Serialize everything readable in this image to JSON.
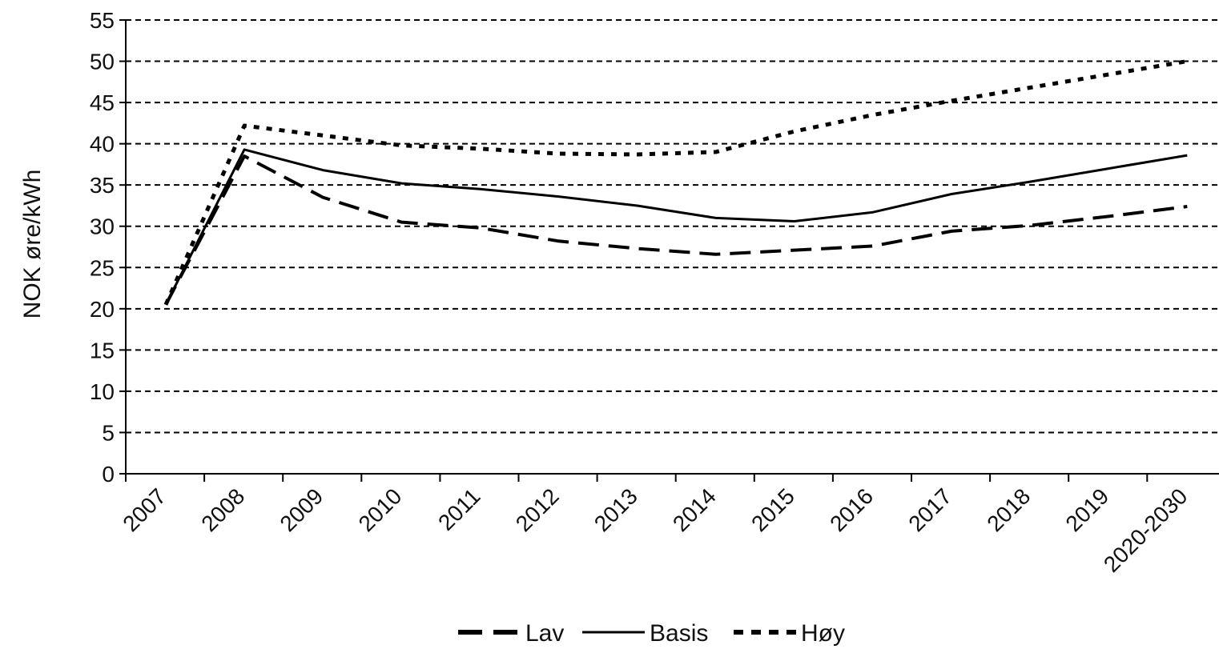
{
  "chart_data": {
    "type": "line",
    "categories": [
      "2007",
      "2008",
      "2009",
      "2010",
      "2011",
      "2012",
      "2013",
      "2014",
      "2015",
      "2016",
      "2017",
      "2018",
      "2019",
      "2020-2030"
    ],
    "ylabel": "NOK øre/kWh",
    "xlabel": "",
    "ylim": [
      0,
      55
    ],
    "yticks": [
      0,
      5,
      10,
      15,
      20,
      25,
      30,
      35,
      40,
      45,
      50,
      55
    ],
    "grid": true,
    "legend_position": "bottom",
    "series": [
      {
        "name": "Lav",
        "style": "long-dash",
        "values": [
          20.5,
          38.5,
          33.5,
          30.5,
          29.8,
          28.2,
          27.3,
          26.6,
          27.1,
          27.6,
          29.4,
          30.1,
          31.2,
          32.4
        ]
      },
      {
        "name": "Basis",
        "style": "solid",
        "values": [
          20.5,
          39.3,
          36.8,
          35.2,
          34.5,
          33.6,
          32.5,
          31.0,
          30.6,
          31.7,
          33.9,
          35.4,
          37.0,
          38.6
        ]
      },
      {
        "name": "Høy",
        "style": "dotted",
        "values": [
          20.5,
          42.2,
          41.0,
          39.8,
          39.4,
          38.8,
          38.7,
          39.0,
          41.5,
          43.5,
          45.2,
          46.8,
          48.4,
          50.0
        ]
      }
    ],
    "colors": {
      "lines": "#000000",
      "grid": "#000000",
      "background": "#ffffff"
    }
  }
}
